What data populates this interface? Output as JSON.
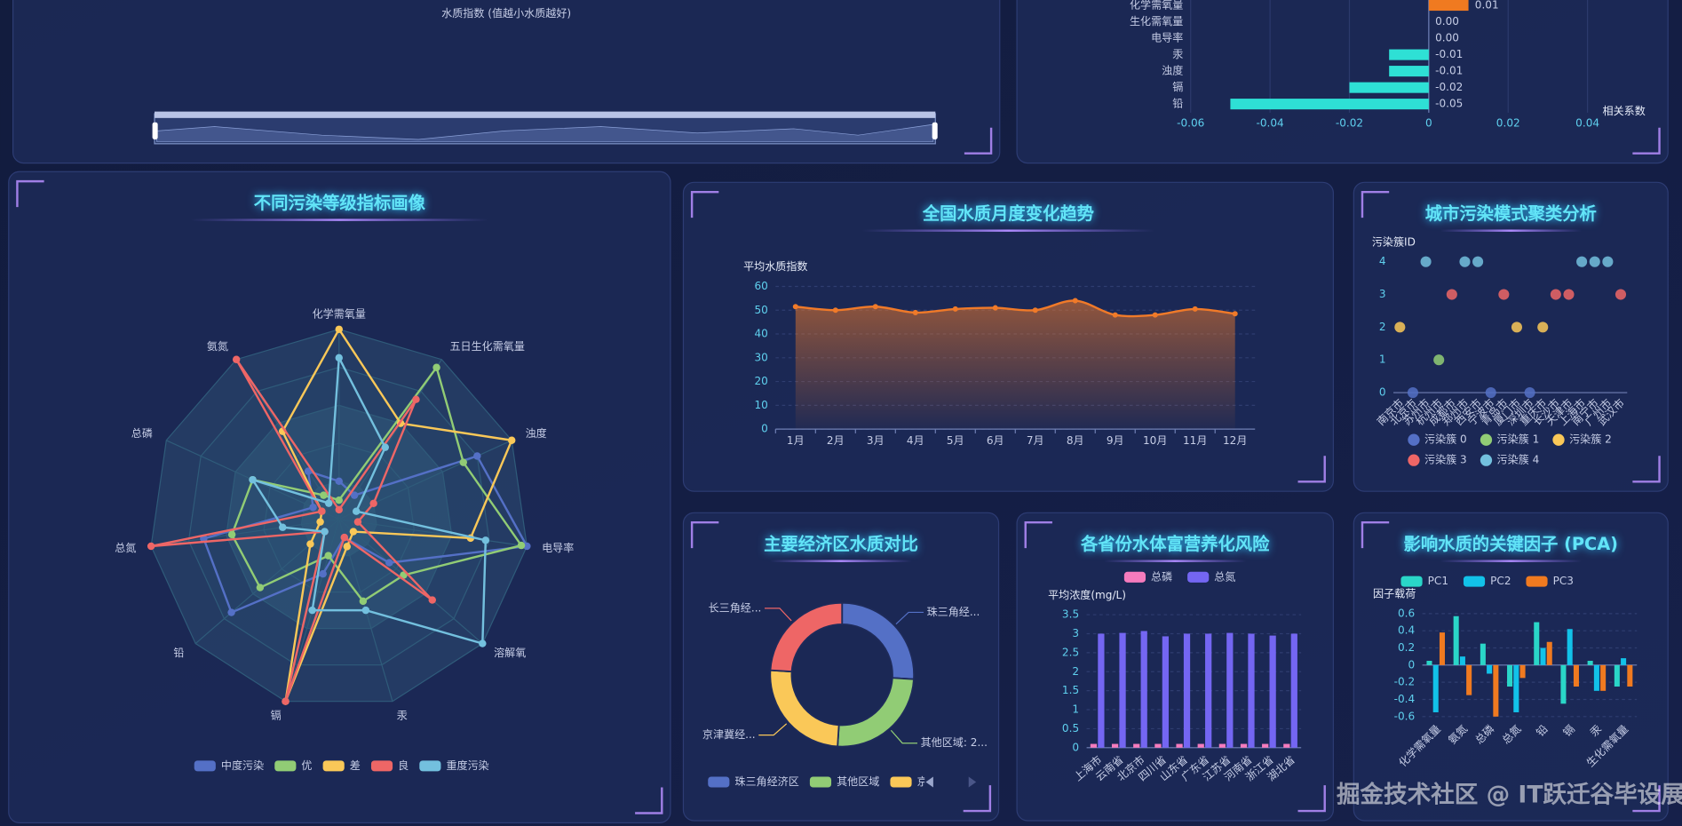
{
  "chart_data": [
    {
      "type": "map",
      "subtitle": "水质指数 (值越小水质越好)"
    },
    {
      "type": "bar",
      "orientation": "horizontal",
      "categories": [
        "化学需氧量",
        "生化需氧量",
        "电导率",
        "汞",
        "浊度",
        "镉",
        "铅"
      ],
      "values": [
        0.01,
        0,
        0,
        -0.01,
        -0.01,
        -0.02,
        -0.05
      ],
      "value_labels": [
        "0.01",
        "0.00",
        "0.00",
        "-0.01",
        "-0.01",
        "-0.02",
        "-0.05"
      ],
      "positive_color": "#f07a20",
      "negative_color": "#2ee0d5",
      "xlabel": "相关系数",
      "xlim": [
        -0.06,
        0.04
      ],
      "xticks": [
        -0.06,
        -0.04,
        -0.02,
        0,
        0.02,
        0.04
      ],
      "grid": true
    },
    {
      "type": "radar",
      "title": "不同污染等级指标画像",
      "indicators": [
        "化学需氧量",
        "五日生化需氧量",
        "浊度",
        "电导率",
        "溶解氧",
        "汞",
        "镉",
        "铅",
        "总氮",
        "总磷",
        "氨氮"
      ],
      "rlim": [
        0,
        1
      ],
      "series": [
        {
          "name": "中度污染",
          "color": "#5470c6",
          "values": [
            0.2,
            0.15,
            0.8,
            1.0,
            0.35,
            0.1,
            0.3,
            0.75,
            0.72,
            0.15,
            0.3
          ]
        },
        {
          "name": "优",
          "color": "#91cc75",
          "values": [
            0.1,
            0.95,
            0.72,
            0.97,
            0.45,
            0.45,
            0.2,
            0.55,
            0.57,
            0.5,
            0.15
          ]
        },
        {
          "name": "差",
          "color": "#fac858",
          "values": [
            1.0,
            0.6,
            1.0,
            0.7,
            0.1,
            0.15,
            1.0,
            0.2,
            0.1,
            0.1,
            0.55
          ]
        },
        {
          "name": "良",
          "color": "#ee6666",
          "values": [
            0.05,
            0.75,
            0.2,
            0.1,
            0.65,
            0.1,
            1.0,
            0.1,
            1.0,
            0.1,
            1.0
          ]
        },
        {
          "name": "重度污染",
          "color": "#73c0de",
          "values": [
            0.85,
            0.45,
            0.1,
            0.78,
            1.0,
            0.5,
            0.5,
            0.1,
            0.3,
            0.5,
            0.1
          ]
        }
      ]
    },
    {
      "type": "line",
      "title": "全国水质月度变化趋势",
      "ylabel": "平均水质指数",
      "categories": [
        "1月",
        "2月",
        "3月",
        "4月",
        "5月",
        "6月",
        "7月",
        "8月",
        "9月",
        "10月",
        "11月",
        "12月"
      ],
      "values": [
        51.5,
        50,
        51.5,
        49,
        50.5,
        51,
        50,
        54,
        48,
        48,
        50.5,
        48.5
      ],
      "color": "#f07a29",
      "ylim": [
        0,
        60
      ],
      "yticks": [
        0,
        10,
        20,
        30,
        40,
        50,
        60
      ],
      "grid": true
    },
    {
      "type": "scatter",
      "title": "城市污染模式聚类分析",
      "ylabel": "污染簇ID",
      "categories": [
        "南京市",
        "北京市",
        "苏州市",
        "杭州市",
        "成都市",
        "郑州市",
        "西安市",
        "宁波市",
        "青岛市",
        "厦门市",
        "深圳市",
        "重庆市",
        "长沙市",
        "天津市",
        "上海市",
        "南宁市",
        "广州市",
        "武汉市"
      ],
      "series": [
        {
          "name": "污染簇 0",
          "color": "#5470c6",
          "values": [
            null,
            0,
            null,
            null,
            null,
            null,
            null,
            0,
            null,
            null,
            0,
            null,
            null,
            null,
            null,
            null,
            null,
            null
          ]
        },
        {
          "name": "污染簇 1",
          "color": "#91cc75",
          "values": [
            null,
            null,
            null,
            1,
            null,
            null,
            null,
            null,
            null,
            null,
            null,
            null,
            null,
            null,
            null,
            null,
            null,
            null
          ]
        },
        {
          "name": "污染簇 2",
          "color": "#fac858",
          "values": [
            2,
            null,
            null,
            null,
            null,
            null,
            null,
            null,
            null,
            2,
            null,
            2,
            null,
            null,
            null,
            null,
            null,
            null
          ]
        },
        {
          "name": "污染簇 3",
          "color": "#ee6666",
          "values": [
            null,
            null,
            null,
            null,
            3,
            null,
            null,
            null,
            3,
            null,
            null,
            null,
            3,
            3,
            null,
            null,
            null,
            3
          ]
        },
        {
          "name": "污染簇 4",
          "color": "#73c0de",
          "values": [
            null,
            null,
            4,
            null,
            null,
            4,
            4,
            null,
            null,
            null,
            null,
            null,
            null,
            null,
            4,
            4,
            4,
            null
          ]
        }
      ],
      "ylim": [
        0,
        4
      ],
      "yticks": [
        0,
        1,
        2,
        3,
        4
      ]
    },
    {
      "type": "pie",
      "title": "主要经济区水质对比",
      "categories": [
        "珠三角经济区",
        "其他区域",
        "京津冀经济区",
        "长三角经济区"
      ],
      "values": [
        26,
        25,
        25,
        24
      ],
      "labels": [
        "珠三角经...",
        "其他区域: 2...",
        "京津冀经...",
        "长三角经..."
      ],
      "colors": [
        "#5470c6",
        "#91cc75",
        "#fac858",
        "#ee6666"
      ]
    },
    {
      "type": "bar",
      "title": "各省份水体富营养化风险",
      "ylabel": "平均浓度(mg/L)",
      "categories": [
        "上海市",
        "云南省",
        "北京市",
        "四川省",
        "山东省",
        "广东省",
        "江苏省",
        "河南省",
        "浙江省",
        "湖北省"
      ],
      "series": [
        {
          "name": "总磷",
          "color": "#f57bbd",
          "values": [
            0.1,
            0.1,
            0.1,
            0.1,
            0.1,
            0.1,
            0.1,
            0.1,
            0.1,
            0.1
          ]
        },
        {
          "name": "总氮",
          "color": "#7466f2",
          "values": [
            3.0,
            3.02,
            3.07,
            2.93,
            3.0,
            3.0,
            3.02,
            3.0,
            2.95,
            3.0
          ]
        }
      ],
      "ylim": [
        0,
        3.5
      ],
      "yticks": [
        0,
        0.5,
        1,
        1.5,
        2,
        2.5,
        3,
        3.5
      ],
      "grid": true
    },
    {
      "type": "bar",
      "title": "影响水质的关键因子 (PCA)",
      "ylabel": "因子载荷",
      "categories": [
        "化学需氧量",
        "氨氮",
        "总磷",
        "总氮",
        "铅",
        "镉",
        "汞",
        "生化需氧量"
      ],
      "series": [
        {
          "name": "PC1",
          "color": "#2ad6c8",
          "values": [
            0.05,
            0.57,
            0.25,
            -0.25,
            0.5,
            -0.45,
            0.05,
            -0.25
          ]
        },
        {
          "name": "PC2",
          "color": "#12c2e9",
          "values": [
            -0.55,
            0.1,
            -0.1,
            -0.55,
            0.2,
            0.42,
            -0.3,
            0.08
          ]
        },
        {
          "name": "PC3",
          "color": "#f07a20",
          "values": [
            0.38,
            -0.35,
            -0.6,
            -0.15,
            0.27,
            -0.25,
            -0.3,
            -0.25
          ]
        }
      ],
      "ylim": [
        -0.6,
        0.6
      ],
      "yticks": [
        -0.6,
        -0.4,
        -0.2,
        0,
        0.2,
        0.4,
        0.6
      ],
      "grid": true
    }
  ],
  "watermark": "掘金技术社区 @ IT跃迁谷毕设展"
}
